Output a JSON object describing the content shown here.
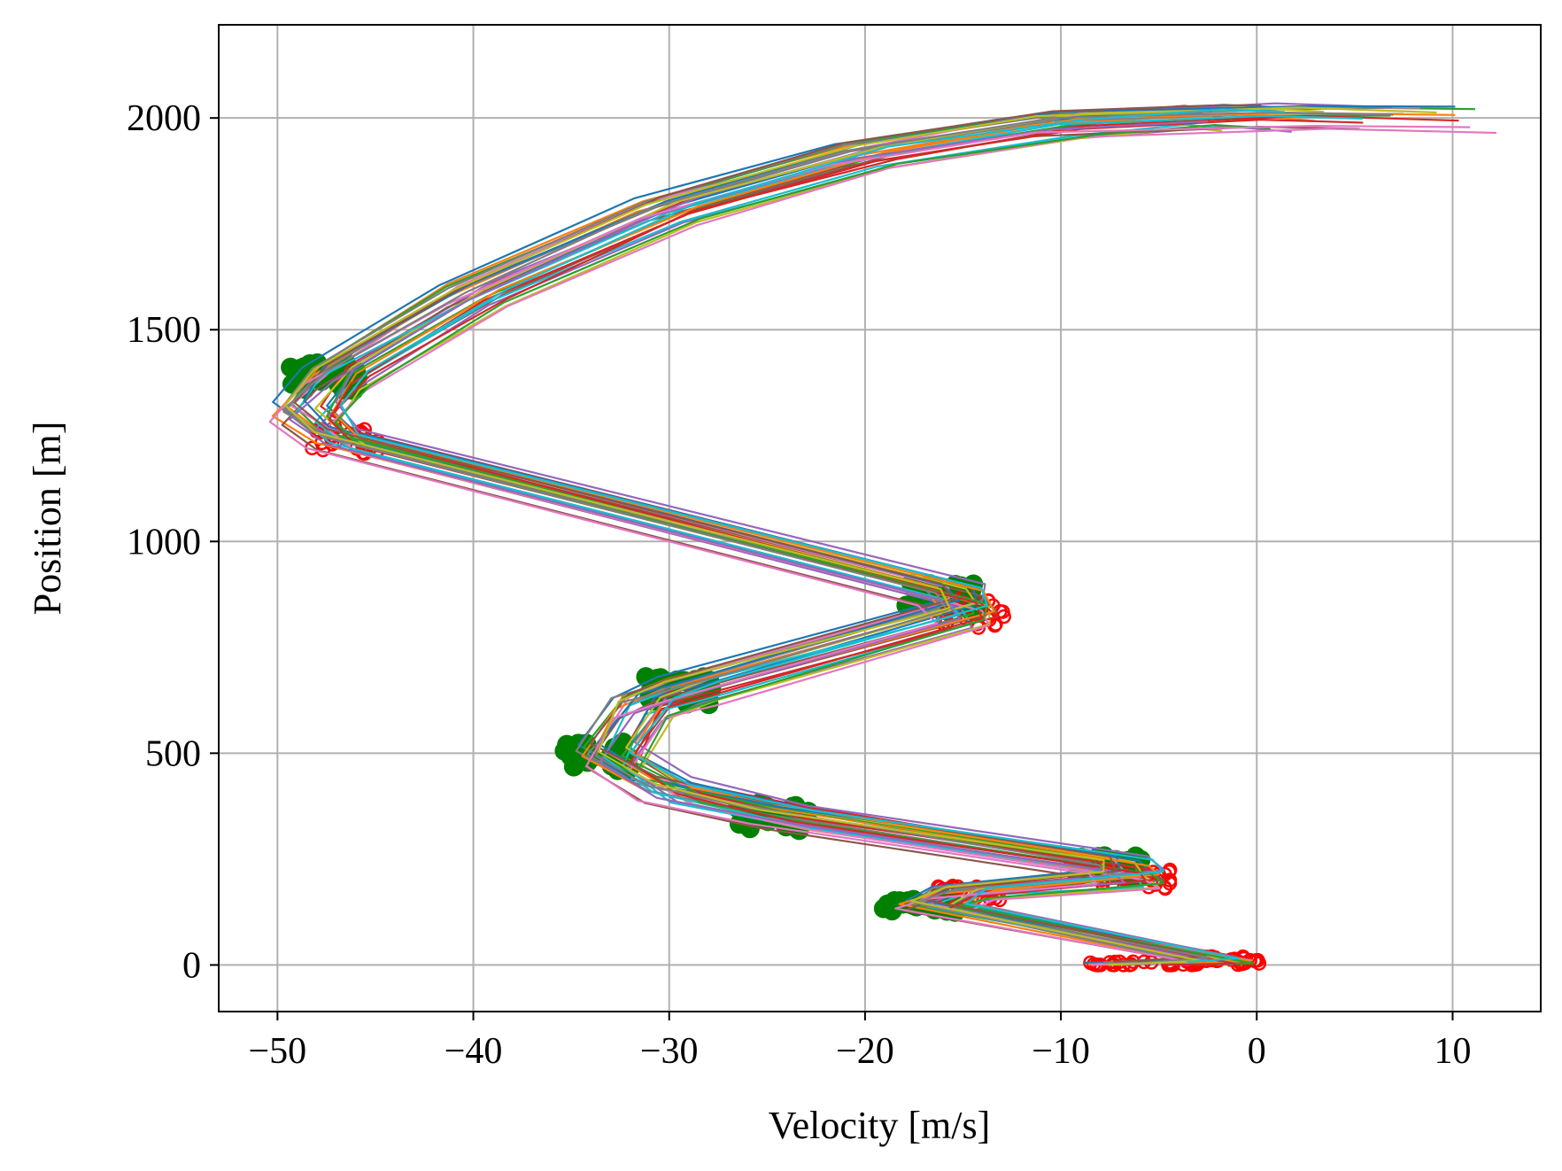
{
  "chart_data": {
    "type": "line",
    "title": "",
    "xlabel": "Velocity [m/s]",
    "ylabel": "Position [m]",
    "xlim": [
      -53,
      14.5
    ],
    "ylim": [
      -110,
      2220
    ],
    "xticks": [
      -50,
      -40,
      -30,
      -20,
      -10,
      0,
      10
    ],
    "yticks": [
      0,
      500,
      1000,
      1500,
      2000
    ],
    "xtick_labels": [
      "−50",
      "−40",
      "−30",
      "−20",
      "−10",
      "0",
      "10"
    ],
    "ytick_labels": [
      "0",
      "500",
      "1000",
      "1500",
      "2000"
    ],
    "grid": true,
    "legend": "none",
    "series_count": 30,
    "colors": [
      "#1f77b4",
      "#ff7f0e",
      "#2ca02c",
      "#d62728",
      "#9467bd",
      "#8c564b",
      "#e377c2",
      "#7f7f7f",
      "#bcbd22",
      "#17becf"
    ],
    "switch_to_braking_marker": {
      "shape": "filled-circle",
      "color": "#008000"
    },
    "switch_to_coasting_marker": {
      "shape": "open-circle",
      "color": "#ff0000"
    },
    "reference_trajectory": [
      {
        "v": -6,
        "p": 0
      },
      {
        "v": -2,
        "p": 10
      },
      {
        "v": -16.5,
        "p": 140
      },
      {
        "v": -15,
        "p": 170
      },
      {
        "v": -6.5,
        "p": 205
      },
      {
        "v": -7,
        "p": 230
      },
      {
        "v": -24,
        "p": 350
      },
      {
        "v": -30,
        "p": 410
      },
      {
        "v": -33,
        "p": 490
      },
      {
        "v": -31.5,
        "p": 610
      },
      {
        "v": -29,
        "p": 650
      },
      {
        "v": -15,
        "p": 830
      },
      {
        "v": -15.5,
        "p": 870
      },
      {
        "v": -47,
        "p": 1240
      },
      {
        "v": -48.5,
        "p": 1300
      },
      {
        "v": -47,
        "p": 1390
      },
      {
        "v": -40,
        "p": 1580
      },
      {
        "v": -30,
        "p": 1780
      },
      {
        "v": -20,
        "p": 1910
      },
      {
        "v": -10,
        "p": 1985
      },
      {
        "v": 0,
        "p": 2005
      },
      {
        "v": 5,
        "p": 2000
      }
    ]
  }
}
